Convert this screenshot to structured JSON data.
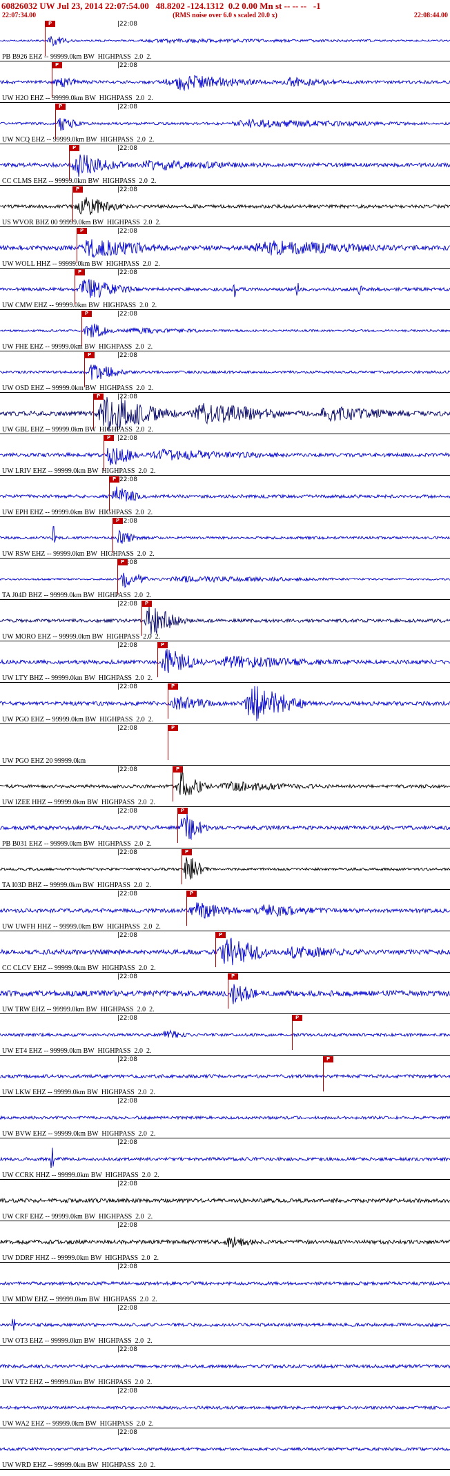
{
  "header": {
    "event_line": "60826032 UW Jul 23, 2014 22:07:54.00   48.8202 -124.1312  0.2 0.00 Mn st -- -- --   -1",
    "window_start": "22:07:34.00",
    "scale_note": "(RMS noise over 6.0 s scaled 20.0 x)",
    "window_end": "22:08:44.00"
  },
  "colors": {
    "accent": "#c00000",
    "trace_blue": "#0000cc",
    "trace_black": "#000000",
    "trace_navy": "#000066",
    "background": "#ffffff",
    "text": "#000000"
  },
  "timeline": {
    "tick_label": "|22:08",
    "tick_x": 170
  },
  "pick_flag": {
    "label": "P"
  },
  "traces": [
    {
      "label": "PB B926 EHZ -- 99999.0km BW  HIGHPASS  2.0  2.",
      "pick": 65,
      "noise": 0.05,
      "bursts": [
        [
          0.105,
          0.17,
          0.3
        ],
        [
          0.3,
          0.95,
          0.07
        ]
      ],
      "seed": 11
    },
    {
      "label": "UW H2O EHZ -- 99999.0km BW  HIGHPASS  2.0  2.",
      "pick": 75,
      "noise": 0.09,
      "bursts": [
        [
          0.12,
          0.2,
          0.25
        ],
        [
          0.36,
          0.62,
          0.4
        ],
        [
          0.62,
          0.8,
          0.2
        ]
      ],
      "seed": 12
    },
    {
      "label": "UW NCQ EHZ -- 99999.0km BW  HIGHPASS  2.0  2.",
      "pick": 80,
      "noise": 0.07,
      "bursts": [
        [
          0.127,
          0.19,
          0.4
        ],
        [
          0.5,
          0.98,
          0.18
        ]
      ],
      "seed": 13
    },
    {
      "label": "CC CLMS EHZ -- 99999.0km BW  HIGHPASS  2.0  2.",
      "pick": 100,
      "noise": 0.11,
      "bursts": [
        [
          0.157,
          0.3,
          0.55
        ],
        [
          0.3,
          0.6,
          0.2
        ]
      ],
      "seed": 14
    },
    {
      "label": "US WVOR BHZ 00 99999.0km BW  HIGHPASS  2.0  2.",
      "pick": 105,
      "color": "#000000",
      "noise": 0.09,
      "bursts": [
        [
          0.165,
          0.3,
          0.5
        ]
      ],
      "seed": 15
    },
    {
      "label": "UW WOLL HHZ -- 99999.0km BW  HIGHPASS  2.0  2.",
      "pick": 111,
      "noise": 0.13,
      "bursts": [
        [
          0.174,
          0.4,
          0.45
        ],
        [
          0.55,
          0.95,
          0.3
        ]
      ],
      "seed": 16
    },
    {
      "label": "UW CMW EHZ -- 99999.0km BW  HIGHPASS  2.0  2.",
      "pick": 108,
      "noise": 0.09,
      "bursts": [
        [
          0.17,
          0.32,
          0.55
        ]
      ],
      "spikes": [
        [
          0.52,
          0.7
        ],
        [
          0.66,
          0.6
        ],
        [
          0.8,
          0.5
        ]
      ],
      "seed": 17
    },
    {
      "label": "UW FHE EHZ -- 99999.0km BW  HIGHPASS  2.0  2.",
      "pick": 118,
      "noise": 0.06,
      "bursts": [
        [
          0.185,
          0.27,
          0.5
        ],
        [
          0.27,
          0.5,
          0.12
        ]
      ],
      "seed": 18
    },
    {
      "label": "UW OSD EHZ -- 99999.0km BW  HIGHPASS  2.0  2.",
      "pick": 122,
      "noise": 0.07,
      "bursts": [
        [
          0.19,
          0.3,
          0.45
        ]
      ],
      "seed": 19
    },
    {
      "label": "UW GBL EHZ -- 99999.0km BW  HIGHPASS  2.0  2.",
      "pick": 135,
      "color": "#000066",
      "noise": 0.13,
      "bursts": [
        [
          0.212,
          0.42,
          1.0
        ],
        [
          0.42,
          0.7,
          0.5
        ],
        [
          0.7,
          0.95,
          0.3
        ]
      ],
      "seed": 20
    },
    {
      "label": "UW LRIV EHZ -- 99999.0km BW  HIGHPASS  2.0  2.",
      "pick": 150,
      "noise": 0.11,
      "bursts": [
        [
          0.235,
          0.32,
          0.75
        ],
        [
          0.32,
          0.65,
          0.22
        ]
      ],
      "seed": 21
    },
    {
      "label": "UW EPH EHZ -- 99999.0km BW  HIGHPASS  2.0  2.",
      "pick": 158,
      "noise": 0.09,
      "bursts": [
        [
          0.247,
          0.33,
          0.5
        ]
      ],
      "seed": 22
    },
    {
      "label": "UW RSW EHZ -- 99999.0km BW  HIGHPASS  2.0  2.",
      "pick": 163,
      "noise": 0.07,
      "bursts": [
        [
          0.255,
          0.33,
          0.35
        ]
      ],
      "spikes": [
        [
          0.12,
          0.95
        ]
      ],
      "seed": 23
    },
    {
      "label": "TA J04D BHZ -- 99999.0km BW  HIGHPASS  2.0  2.",
      "pick": 170,
      "noise": 0.05,
      "bursts": [
        [
          0.265,
          0.35,
          0.5
        ],
        [
          0.35,
          0.85,
          0.13
        ]
      ],
      "seed": 24
    },
    {
      "label": "UW MORO EHZ -- 99999.0km BW  HIGHPASS  2.0  2.",
      "pick": 205,
      "color": "#000066",
      "noise": 0.09,
      "bursts": [
        [
          0.319,
          0.43,
          0.85
        ]
      ],
      "seed": 25
    },
    {
      "label": "UW LTY BHZ -- 99999.0km BW  HIGHPASS  2.0  2.",
      "pick": 228,
      "noise": 0.11,
      "bursts": [
        [
          0.355,
          0.47,
          0.7
        ],
        [
          0.47,
          0.8,
          0.25
        ]
      ],
      "seed": 26
    },
    {
      "label": "UW PGO EHZ -- 99999.0km BW  HIGHPASS  2.0  2.",
      "pick": 243,
      "noise": 0.11,
      "bursts": [
        [
          0.378,
          0.5,
          0.35
        ],
        [
          0.54,
          0.71,
          0.95
        ]
      ],
      "seed": 27
    },
    {
      "label": "UW PGO EHZ 20 99999.0km",
      "pick": 243,
      "flat": true,
      "seed": 28
    },
    {
      "label": "UW IZEE HHZ -- 99999.0km BW  HIGHPASS  2.0  2.",
      "pick": 250,
      "color": "#000000",
      "noise": 0.09,
      "bursts": [
        [
          0.388,
          0.48,
          0.75
        ],
        [
          0.48,
          0.75,
          0.2
        ]
      ],
      "seed": 29
    },
    {
      "label": "PB B031 EHZ -- 99999.0km BW  HIGHPASS  2.0  2.",
      "pick": 257,
      "noise": 0.11,
      "bursts": [
        [
          0.398,
          0.47,
          0.85
        ]
      ],
      "seed": 30
    },
    {
      "label": "TA I03D BHZ -- 99999.0km BW  HIGHPASS  2.0  2.",
      "pick": 263,
      "color": "#000000",
      "noise": 0.07,
      "bursts": [
        [
          0.408,
          0.47,
          0.8
        ]
      ],
      "seed": 31
    },
    {
      "label": "UW UWFH HHZ -- 99999.0km BW  HIGHPASS  2.0  2.",
      "pick": 270,
      "noise": 0.11,
      "bursts": [
        [
          0.42,
          0.56,
          0.4
        ],
        [
          0.56,
          0.76,
          0.28
        ]
      ],
      "seed": 32
    },
    {
      "label": "CC CLCV EHZ -- 99999.0km BW  HIGHPASS  2.0  2.",
      "pick": 312,
      "noise": 0.13,
      "bursts": [
        [
          0.483,
          0.63,
          0.8
        ],
        [
          0.63,
          0.82,
          0.25
        ]
      ],
      "seed": 33
    },
    {
      "label": "UW TRW EHZ -- 99999.0km BW  HIGHPASS  2.0  2.",
      "pick": 330,
      "noise": 0.16,
      "bursts": [
        [
          0.51,
          0.58,
          0.55
        ]
      ],
      "seed": 34
    },
    {
      "label": "UW ET4 EHZ -- 99999.0km BW  HIGHPASS  2.0  2.",
      "pick": 423,
      "noise": 0.08,
      "bursts": [
        [
          0.36,
          0.43,
          0.22
        ]
      ],
      "seed": 35
    },
    {
      "label": "UW LKW EHZ -- 99999.0km BW  HIGHPASS  2.0  2.",
      "pick": 468,
      "noise": 0.09,
      "bursts": [],
      "seed": 36
    },
    {
      "label": "UW BVW EHZ -- 99999.0km BW  HIGHPASS  2.0  2.",
      "pick": null,
      "noise": 0.08,
      "seed": 37
    },
    {
      "label": "UW CCRK HHZ -- 99999.0km BW  HIGHPASS  2.0  2.",
      "pick": null,
      "noise": 0.09,
      "spikes": [
        [
          0.115,
          0.9
        ]
      ],
      "seed": 38
    },
    {
      "label": "UW CRF EHZ -- 99999.0km BW  HIGHPASS  2.0  2.",
      "pick": null,
      "color": "#000000",
      "noise": 0.11,
      "seed": 39
    },
    {
      "label": "UW DDRF HHZ -- 99999.0km BW  HIGHPASS  2.0  2.",
      "pick": null,
      "color": "#000000",
      "noise": 0.11,
      "bursts": [
        [
          0.5,
          0.58,
          0.25
        ]
      ],
      "seed": 40
    },
    {
      "label": "UW MDW EHZ -- 99999.0km BW  HIGHPASS  2.0  2.",
      "pick": null,
      "noise": 0.09,
      "seed": 41
    },
    {
      "label": "UW OT3 EHZ -- 99999.0km BW  HIGHPASS  2.0  2.",
      "pick": null,
      "noise": 0.09,
      "spikes": [
        [
          0.03,
          0.45
        ]
      ],
      "seed": 42
    },
    {
      "label": "UW VT2 EHZ -- 99999.0km BW  HIGHPASS  2.0  2.",
      "pick": null,
      "noise": 0.09,
      "seed": 43
    },
    {
      "label": "UW WA2 EHZ -- 99999.0km BW  HIGHPASS  2.0  2.",
      "pick": null,
      "noise": 0.08,
      "seed": 44
    },
    {
      "label": "UW WRD EHZ -- 99999.0km BW  HIGHPASS  2.0  2.",
      "pick": null,
      "noise": 0.08,
      "seed": 45
    }
  ]
}
